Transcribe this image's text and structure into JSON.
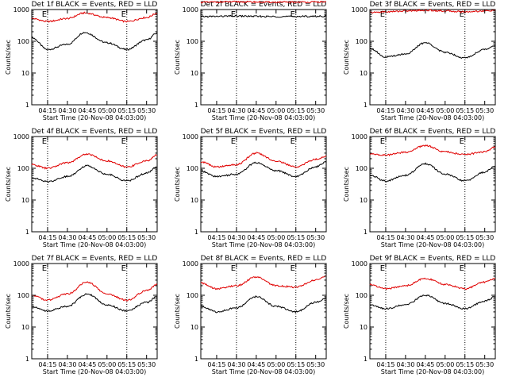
{
  "chart_data": [
    {
      "type": "line",
      "title": "Det 1f BLACK = Events, RED = LLD",
      "xlabel": "Start Time (20-Nov-08 04:03:00)",
      "ylabel": "Counts/sec",
      "x_ticks": [
        "04:15",
        "04:30",
        "04:45",
        "05:00",
        "05:15",
        "05:30"
      ],
      "y_ticks": [
        "1",
        "10",
        "100",
        "1000"
      ],
      "ylim": [
        1,
        1000
      ],
      "y_scale": "log",
      "markers": [
        "04:15",
        "05:15"
      ],
      "marker_label": "E",
      "series": [
        {
          "name": "BLACK",
          "color": "#000000",
          "x": [
            "04:03",
            "04:15",
            "04:30",
            "04:43",
            "05:00",
            "05:15",
            "05:30",
            "05:38"
          ],
          "values": [
            130,
            55,
            80,
            190,
            90,
            55,
            110,
            180
          ]
        },
        {
          "name": "RED",
          "color": "#e00000",
          "x": [
            "04:03",
            "04:15",
            "04:30",
            "04:43",
            "05:00",
            "05:15",
            "05:30",
            "05:38"
          ],
          "values": [
            520,
            420,
            520,
            780,
            560,
            420,
            560,
            760
          ]
        }
      ]
    },
    {
      "type": "line",
      "title": "Det 2f BLACK = Events, RED = LLD",
      "xlabel": "Start Time (20-Nov-08 04:03:00)",
      "ylabel": "Counts/sec",
      "x_ticks": [
        "04:15",
        "04:30",
        "04:45",
        "05:00",
        "05:15",
        "05:30"
      ],
      "y_ticks": [
        "1",
        "10",
        "100",
        "1000"
      ],
      "ylim": [
        1,
        1000
      ],
      "y_scale": "log",
      "markers": [
        "04:30",
        "05:15"
      ],
      "marker_label": "E",
      "series": [
        {
          "name": "BLACK",
          "color": "#000000",
          "x": [
            "04:03",
            "04:30",
            "05:00",
            "05:30",
            "05:38"
          ],
          "values": [
            600,
            620,
            600,
            610,
            620
          ]
        },
        {
          "name": "RED",
          "color": "#e00000",
          "x": [
            "04:03",
            "04:30",
            "05:00",
            "05:30",
            "05:38"
          ],
          "values": [
            1700,
            1750,
            1700,
            1720,
            1750
          ]
        }
      ]
    },
    {
      "type": "line",
      "title": "Det 3f BLACK = Events, RED = LLD",
      "xlabel": "Start Time (20-Nov-08 04:03:00)",
      "ylabel": "Counts/sec",
      "x_ticks": [
        "04:15",
        "04:30",
        "04:45",
        "05:00",
        "05:15",
        "05:30"
      ],
      "y_ticks": [
        "1",
        "10",
        "100",
        "1000"
      ],
      "ylim": [
        1,
        1000
      ],
      "y_scale": "log",
      "markers": [
        "04:15",
        "05:15"
      ],
      "marker_label": "E",
      "series": [
        {
          "name": "BLACK",
          "color": "#000000",
          "x": [
            "04:03",
            "04:15",
            "04:30",
            "04:45",
            "05:00",
            "05:15",
            "05:30",
            "05:38"
          ],
          "values": [
            60,
            32,
            40,
            90,
            45,
            30,
            55,
            75
          ]
        },
        {
          "name": "RED",
          "color": "#e00000",
          "x": [
            "04:03",
            "04:15",
            "04:30",
            "04:45",
            "05:00",
            "05:15",
            "05:30",
            "05:38"
          ],
          "values": [
            800,
            850,
            900,
            950,
            900,
            850,
            900,
            950
          ]
        }
      ]
    },
    {
      "type": "line",
      "title": "Det 4f BLACK = Events, RED = LLD",
      "xlabel": "Start Time (20-Nov-08 04:03:00)",
      "ylabel": "Counts/sec",
      "x_ticks": [
        "04:15",
        "04:30",
        "04:45",
        "05:00",
        "05:15",
        "05:30"
      ],
      "y_ticks": [
        "1",
        "10",
        "100",
        "1000"
      ],
      "ylim": [
        1,
        1000
      ],
      "y_scale": "log",
      "markers": [
        "04:15",
        "05:15"
      ],
      "marker_label": "E",
      "series": [
        {
          "name": "BLACK",
          "color": "#000000",
          "x": [
            "04:03",
            "04:15",
            "04:30",
            "04:45",
            "05:00",
            "05:15",
            "05:30",
            "05:38"
          ],
          "values": [
            50,
            38,
            55,
            120,
            65,
            40,
            70,
            110
          ]
        },
        {
          "name": "RED",
          "color": "#e00000",
          "x": [
            "04:03",
            "04:15",
            "04:30",
            "04:45",
            "05:00",
            "05:15",
            "05:30",
            "05:38"
          ],
          "values": [
            130,
            100,
            150,
            280,
            170,
            110,
            170,
            260
          ]
        }
      ]
    },
    {
      "type": "line",
      "title": "Det 5f BLACK = Events, RED = LLD",
      "xlabel": "Start Time (20-Nov-08 04:03:00)",
      "ylabel": "Counts/sec",
      "x_ticks": [
        "04:15",
        "04:30",
        "04:45",
        "05:00",
        "05:15",
        "05:30"
      ],
      "y_ticks": [
        "1",
        "10",
        "100",
        "1000"
      ],
      "ylim": [
        1,
        1000
      ],
      "y_scale": "log",
      "markers": [
        "04:30",
        "05:15"
      ],
      "marker_label": "E",
      "series": [
        {
          "name": "BLACK",
          "color": "#000000",
          "x": [
            "04:03",
            "04:15",
            "04:30",
            "04:45",
            "05:00",
            "05:15",
            "05:30",
            "05:38"
          ],
          "values": [
            80,
            55,
            65,
            150,
            85,
            55,
            110,
            160
          ]
        },
        {
          "name": "RED",
          "color": "#e00000",
          "x": [
            "04:03",
            "04:15",
            "04:30",
            "04:45",
            "05:00",
            "05:15",
            "05:30",
            "05:38"
          ],
          "values": [
            160,
            110,
            130,
            300,
            170,
            110,
            190,
            240
          ]
        }
      ]
    },
    {
      "type": "line",
      "title": "Det 6f BLACK = Events, RED = LLD",
      "xlabel": "Start Time (20-Nov-08 04:03:00)",
      "ylabel": "Counts/sec",
      "x_ticks": [
        "04:15",
        "04:30",
        "04:45",
        "05:00",
        "05:15",
        "05:30"
      ],
      "y_ticks": [
        "1",
        "10",
        "100",
        "1000"
      ],
      "ylim": [
        1,
        1000
      ],
      "y_scale": "log",
      "markers": [
        "04:15",
        "05:15"
      ],
      "marker_label": "E",
      "series": [
        {
          "name": "BLACK",
          "color": "#000000",
          "x": [
            "04:03",
            "04:15",
            "04:30",
            "04:45",
            "05:00",
            "05:15",
            "05:30",
            "05:38"
          ],
          "values": [
            60,
            40,
            60,
            140,
            65,
            40,
            75,
            120
          ]
        },
        {
          "name": "RED",
          "color": "#e00000",
          "x": [
            "04:03",
            "04:15",
            "04:30",
            "04:45",
            "05:00",
            "05:15",
            "05:30",
            "05:38"
          ],
          "values": [
            280,
            260,
            320,
            520,
            330,
            270,
            330,
            460
          ]
        }
      ]
    },
    {
      "type": "line",
      "title": "Det 7f BLACK = Events, RED = LLD",
      "xlabel": "Start Time (20-Nov-08 04:03:00)",
      "ylabel": "Counts/sec",
      "x_ticks": [
        "04:15",
        "04:30",
        "04:45",
        "05:00",
        "05:15",
        "05:30"
      ],
      "y_ticks": [
        "1",
        "10",
        "100",
        "1000"
      ],
      "ylim": [
        1,
        1000
      ],
      "y_scale": "log",
      "markers": [
        "04:15",
        "05:15"
      ],
      "marker_label": "E",
      "series": [
        {
          "name": "BLACK",
          "color": "#000000",
          "x": [
            "04:03",
            "04:15",
            "04:30",
            "04:45",
            "05:00",
            "05:15",
            "05:30",
            "05:38"
          ],
          "values": [
            45,
            32,
            45,
            110,
            50,
            32,
            60,
            90
          ]
        },
        {
          "name": "RED",
          "color": "#e00000",
          "x": [
            "04:03",
            "04:15",
            "04:30",
            "04:45",
            "05:00",
            "05:15",
            "05:30",
            "05:38"
          ],
          "values": [
            100,
            70,
            110,
            260,
            110,
            70,
            140,
            220
          ]
        }
      ]
    },
    {
      "type": "line",
      "title": "Det 8f BLACK = Events, RED = LLD",
      "xlabel": "Start Time (20-Nov-08 04:03:00)",
      "ylabel": "Counts/sec",
      "x_ticks": [
        "04:15",
        "04:30",
        "04:45",
        "05:00",
        "05:15",
        "05:30"
      ],
      "y_ticks": [
        "1",
        "10",
        "100",
        "1000"
      ],
      "ylim": [
        1,
        1000
      ],
      "y_scale": "log",
      "markers": [
        "04:30",
        "05:15"
      ],
      "marker_label": "E",
      "series": [
        {
          "name": "BLACK",
          "color": "#000000",
          "x": [
            "04:03",
            "04:15",
            "04:30",
            "04:45",
            "05:00",
            "05:15",
            "05:30",
            "05:38"
          ],
          "values": [
            45,
            30,
            40,
            90,
            45,
            30,
            60,
            80
          ]
        },
        {
          "name": "RED",
          "color": "#e00000",
          "x": [
            "04:03",
            "04:15",
            "04:30",
            "04:45",
            "05:00",
            "05:15",
            "05:30",
            "05:38"
          ],
          "values": [
            240,
            160,
            200,
            380,
            200,
            180,
            300,
            400
          ]
        }
      ]
    },
    {
      "type": "line",
      "title": "Det 9f BLACK = Events, RED = LLD",
      "xlabel": "Start Time (20-Nov-08 04:03:00)",
      "ylabel": "Counts/sec",
      "x_ticks": [
        "04:15",
        "04:30",
        "04:45",
        "05:00",
        "05:15",
        "05:30"
      ],
      "y_ticks": [
        "1",
        "10",
        "100",
        "1000"
      ],
      "ylim": [
        1,
        1000
      ],
      "y_scale": "log",
      "markers": [
        "04:15",
        "05:15"
      ],
      "marker_label": "E",
      "series": [
        {
          "name": "BLACK",
          "color": "#000000",
          "x": [
            "04:03",
            "04:15",
            "04:30",
            "04:45",
            "05:00",
            "05:15",
            "05:30",
            "05:38"
          ],
          "values": [
            50,
            38,
            50,
            100,
            55,
            38,
            65,
            90
          ]
        },
        {
          "name": "RED",
          "color": "#e00000",
          "x": [
            "04:03",
            "04:15",
            "04:30",
            "04:45",
            "05:00",
            "05:15",
            "05:30",
            "05:38"
          ],
          "values": [
            220,
            160,
            200,
            340,
            220,
            160,
            260,
            330
          ]
        }
      ]
    }
  ]
}
